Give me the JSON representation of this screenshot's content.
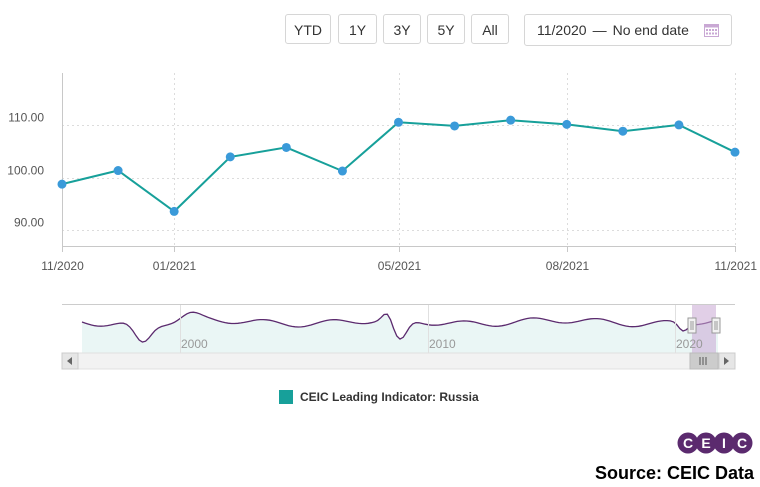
{
  "toolbar": {
    "buttons": [
      {
        "label": "YTD"
      },
      {
        "label": "1Y"
      },
      {
        "label": "3Y"
      },
      {
        "label": "5Y"
      },
      {
        "label": "All"
      }
    ],
    "date_range": {
      "start": "11/2020",
      "separator": "—",
      "end": "No end date"
    }
  },
  "chart_data": {
    "type": "line",
    "x": [
      "11/2020",
      "12/2020",
      "01/2021",
      "02/2021",
      "03/2021",
      "04/2021",
      "05/2021",
      "06/2021",
      "07/2021",
      "08/2021",
      "09/2021",
      "10/2021",
      "11/2021"
    ],
    "series": [
      {
        "name": "CEIC Leading Indicator: Russia",
        "color": "#17a09a",
        "marker_color": "#3a9ad9",
        "values": [
          98.8,
          101.4,
          93.6,
          104.0,
          105.8,
          101.3,
          110.6,
          109.9,
          111.0,
          110.2,
          108.9,
          110.1,
          104.9
        ]
      }
    ],
    "ylim": [
      87,
      120
    ],
    "yticks": [
      "90.00",
      "100.00",
      "110.00"
    ],
    "yticks_values": [
      90,
      100,
      110
    ],
    "xtick_labels": [
      "11/2020",
      "01/2021",
      "05/2021",
      "08/2021",
      "11/2021"
    ],
    "xtick_index": [
      0,
      2,
      6,
      9,
      12
    ],
    "grid": true,
    "navigator": {
      "labels": [
        "2000",
        "2010",
        "2020"
      ],
      "series_color": "#5b2a6e",
      "fill_color": "#eaf6f5",
      "selection_color": "#c9a8d4"
    }
  },
  "legend": {
    "label": "CEIC Leading Indicator: Russia",
    "color": "#17a09a"
  },
  "logo": {
    "letters": [
      "C",
      "E",
      "I",
      "C"
    ],
    "color": "#5b2a6e"
  },
  "source": "Source: CEIC Data"
}
